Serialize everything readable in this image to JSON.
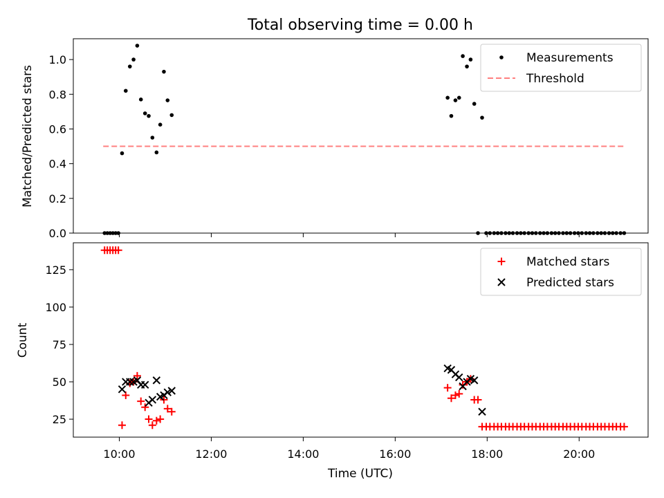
{
  "chart_data": {
    "title": "Total observing time = 0.00 h",
    "xlabel": "Time (UTC)",
    "x_unit": "hours UTC",
    "xlim": [
      9.0,
      21.5
    ],
    "xticks": [
      {
        "value": 10,
        "label": "10:00"
      },
      {
        "value": 12,
        "label": "12:00"
      },
      {
        "value": 14,
        "label": "14:00"
      },
      {
        "value": 16,
        "label": "16:00"
      },
      {
        "value": 18,
        "label": "18:00"
      },
      {
        "value": 20,
        "label": "20:00"
      }
    ],
    "panels": [
      {
        "type": "scatter",
        "ylabel": "Matched/Predicted stars",
        "ylim": [
          0,
          1.12
        ],
        "yticks": [
          {
            "value": 0,
            "label": "0.0"
          },
          {
            "value": 0.2,
            "label": "0.2"
          },
          {
            "value": 0.4,
            "label": "0.4"
          },
          {
            "value": 0.6,
            "label": "0.6"
          },
          {
            "value": 0.8,
            "label": "0.8"
          },
          {
            "value": 1.0,
            "label": "1.0"
          }
        ],
        "legend": "top-right",
        "series": [
          {
            "name": "Measurements",
            "marker": "dot",
            "color": "#000000",
            "points": [
              [
                9.68,
                0
              ],
              [
                9.74,
                0
              ],
              [
                9.8,
                0
              ],
              [
                9.86,
                0
              ],
              [
                9.92,
                0
              ],
              [
                9.98,
                0
              ],
              [
                10.06,
                0.46
              ],
              [
                10.14,
                0.82
              ],
              [
                10.23,
                0.96
              ],
              [
                10.31,
                1.0
              ],
              [
                10.39,
                1.08
              ],
              [
                10.47,
                0.77
              ],
              [
                10.56,
                0.69
              ],
              [
                10.64,
                0.675
              ],
              [
                10.72,
                0.55
              ],
              [
                10.81,
                0.465
              ],
              [
                10.89,
                0.625
              ],
              [
                10.97,
                0.93
              ],
              [
                11.05,
                0.765
              ],
              [
                11.14,
                0.68
              ],
              [
                17.14,
                0.78
              ],
              [
                17.22,
                0.675
              ],
              [
                17.31,
                0.765
              ],
              [
                17.39,
                0.78
              ],
              [
                17.47,
                1.02
              ],
              [
                17.56,
                0.96
              ],
              [
                17.64,
                1.0
              ],
              [
                17.72,
                0.745
              ],
              [
                17.89,
                0.665
              ],
              [
                17.8,
                0
              ],
              [
                17.98,
                0
              ],
              [
                18.06,
                0
              ],
              [
                18.15,
                0
              ],
              [
                18.23,
                0
              ],
              [
                18.31,
                0
              ],
              [
                18.4,
                0
              ],
              [
                18.48,
                0
              ],
              [
                18.56,
                0
              ],
              [
                18.65,
                0
              ],
              [
                18.73,
                0
              ],
              [
                18.81,
                0
              ],
              [
                18.9,
                0
              ],
              [
                18.98,
                0
              ],
              [
                19.06,
                0
              ],
              [
                19.15,
                0
              ],
              [
                19.23,
                0
              ],
              [
                19.31,
                0
              ],
              [
                19.4,
                0
              ],
              [
                19.48,
                0
              ],
              [
                19.56,
                0
              ],
              [
                19.65,
                0
              ],
              [
                19.73,
                0
              ],
              [
                19.81,
                0
              ],
              [
                19.9,
                0
              ],
              [
                19.98,
                0
              ],
              [
                20.06,
                0
              ],
              [
                20.15,
                0
              ],
              [
                20.23,
                0
              ],
              [
                20.31,
                0
              ],
              [
                20.4,
                0
              ],
              [
                20.48,
                0
              ],
              [
                20.56,
                0
              ],
              [
                20.65,
                0
              ],
              [
                20.73,
                0
              ],
              [
                20.81,
                0
              ],
              [
                20.9,
                0
              ],
              [
                20.98,
                0
              ]
            ]
          },
          {
            "name": "Threshold",
            "marker": "dashed-line",
            "color": "#ff7f7f",
            "points": [
              [
                9.65,
                0.5
              ],
              [
                21.0,
                0.5
              ]
            ]
          }
        ]
      },
      {
        "type": "scatter",
        "ylabel": "Count",
        "ylim": [
          13,
          143
        ],
        "yticks": [
          {
            "value": 25,
            "label": "25"
          },
          {
            "value": 50,
            "label": "50"
          },
          {
            "value": 75,
            "label": "75"
          },
          {
            "value": 100,
            "label": "100"
          },
          {
            "value": 125,
            "label": "125"
          }
        ],
        "legend": "top-right",
        "series": [
          {
            "name": "Matched stars",
            "marker": "plus",
            "color": "#ff0000",
            "points": [
              [
                9.68,
                138
              ],
              [
                9.74,
                138
              ],
              [
                9.8,
                138
              ],
              [
                9.86,
                138
              ],
              [
                9.92,
                138
              ],
              [
                9.98,
                138
              ],
              [
                10.06,
                21
              ],
              [
                10.14,
                41
              ],
              [
                10.23,
                49
              ],
              [
                10.31,
                50
              ],
              [
                10.39,
                54
              ],
              [
                10.47,
                37
              ],
              [
                10.56,
                33
              ],
              [
                10.64,
                25
              ],
              [
                10.72,
                21
              ],
              [
                10.81,
                24
              ],
              [
                10.89,
                25
              ],
              [
                10.97,
                38
              ],
              [
                11.05,
                32
              ],
              [
                11.14,
                30
              ],
              [
                17.14,
                46
              ],
              [
                17.22,
                39
              ],
              [
                17.31,
                41
              ],
              [
                17.39,
                42
              ],
              [
                17.47,
                48
              ],
              [
                17.56,
                50
              ],
              [
                17.64,
                52
              ],
              [
                17.72,
                38
              ],
              [
                17.8,
                38
              ],
              [
                17.89,
                20
              ],
              [
                17.98,
                20
              ],
              [
                18.06,
                20
              ],
              [
                18.15,
                20
              ],
              [
                18.23,
                20
              ],
              [
                18.31,
                20
              ],
              [
                18.4,
                20
              ],
              [
                18.48,
                20
              ],
              [
                18.56,
                20
              ],
              [
                18.65,
                20
              ],
              [
                18.73,
                20
              ],
              [
                18.81,
                20
              ],
              [
                18.9,
                20
              ],
              [
                18.98,
                20
              ],
              [
                19.06,
                20
              ],
              [
                19.15,
                20
              ],
              [
                19.23,
                20
              ],
              [
                19.31,
                20
              ],
              [
                19.4,
                20
              ],
              [
                19.48,
                20
              ],
              [
                19.56,
                20
              ],
              [
                19.65,
                20
              ],
              [
                19.73,
                20
              ],
              [
                19.81,
                20
              ],
              [
                19.9,
                20
              ],
              [
                19.98,
                20
              ],
              [
                20.06,
                20
              ],
              [
                20.15,
                20
              ],
              [
                20.23,
                20
              ],
              [
                20.31,
                20
              ],
              [
                20.4,
                20
              ],
              [
                20.48,
                20
              ],
              [
                20.56,
                20
              ],
              [
                20.65,
                20
              ],
              [
                20.73,
                20
              ],
              [
                20.81,
                20
              ],
              [
                20.9,
                20
              ],
              [
                20.98,
                20
              ]
            ]
          },
          {
            "name": "Predicted stars",
            "marker": "x",
            "color": "#000000",
            "points": [
              [
                10.06,
                45
              ],
              [
                10.14,
                50
              ],
              [
                10.23,
                50
              ],
              [
                10.31,
                50
              ],
              [
                10.39,
                51
              ],
              [
                10.47,
                48
              ],
              [
                10.56,
                48
              ],
              [
                10.64,
                36
              ],
              [
                10.72,
                38
              ],
              [
                10.81,
                51
              ],
              [
                10.89,
                40
              ],
              [
                10.97,
                41
              ],
              [
                11.05,
                43
              ],
              [
                11.14,
                44
              ],
              [
                17.14,
                59
              ],
              [
                17.22,
                58
              ],
              [
                17.31,
                55
              ],
              [
                17.39,
                53
              ],
              [
                17.47,
                47
              ],
              [
                17.56,
                50
              ],
              [
                17.64,
                52
              ],
              [
                17.72,
                51
              ],
              [
                17.89,
                30
              ]
            ]
          }
        ]
      }
    ]
  }
}
